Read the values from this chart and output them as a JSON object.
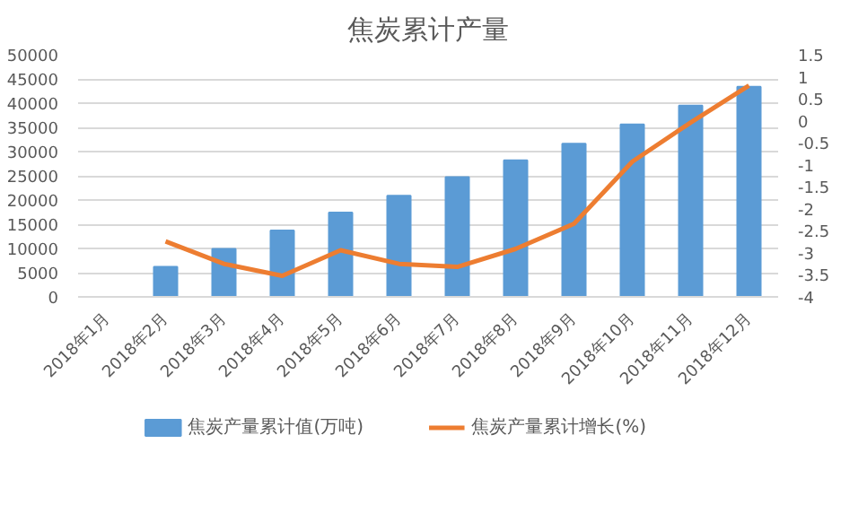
{
  "chart_data": {
    "type": "bar",
    "title": "焦炭累计产量",
    "categories": [
      "2018年1月",
      "2018年2月",
      "2018年3月",
      "2018年4月",
      "2018年5月",
      "2018年6月",
      "2018年7月",
      "2018年8月",
      "2018年9月",
      "2018年10月",
      "2018年11月",
      "2018年12月"
    ],
    "series": [
      {
        "name": "焦炭产量累计值(万吨)",
        "color": "#5b9bd5",
        "values": [
          null,
          6200,
          9900,
          13700,
          17400,
          20900,
          24700,
          28200,
          31600,
          35600,
          39500,
          43400
        ]
      },
      {
        "name": "焦炭产量累计增长(%)",
        "type": "line",
        "axis": "y2",
        "color": "#ed7d31",
        "values": [
          null,
          -2.74,
          -3.25,
          -3.52,
          -2.94,
          -3.25,
          -3.32,
          -2.91,
          -2.34,
          -0.93,
          -0.04,
          0.8
        ]
      }
    ],
    "ylim": [
      0,
      50000
    ],
    "yticks": [
      0,
      5000,
      10000,
      15000,
      20000,
      25000,
      30000,
      35000,
      40000,
      45000,
      50000
    ],
    "y2lim": [
      -4,
      1.5
    ],
    "y2ticks": [
      -4,
      -3.5,
      -3,
      -2.5,
      -2,
      -1.5,
      -1,
      -0.5,
      0,
      0.5,
      1,
      1.5
    ],
    "grid": "y",
    "legend": "bottom"
  }
}
